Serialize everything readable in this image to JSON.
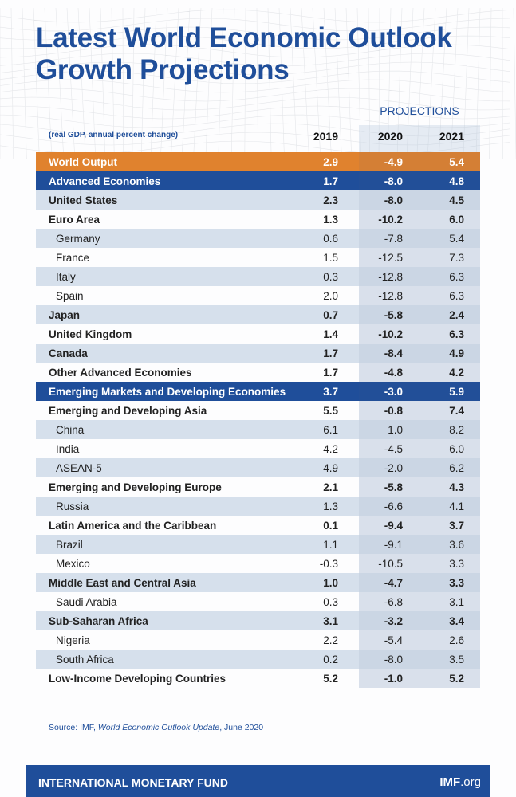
{
  "title_line1": "Latest World Economic Outlook",
  "title_line2": "Growth Projections",
  "projections_label": "PROJECTIONS",
  "unit_note": "(real GDP, annual percent change)",
  "years": [
    "2019",
    "2020",
    "2021"
  ],
  "colors": {
    "brand_blue": "#1f4e9a",
    "world_orange": "#e0822e",
    "row_alt": "#d6e0ec"
  },
  "rows": [
    {
      "label": "World Output",
      "type": "world",
      "values": [
        "2.9",
        "-4.9",
        "5.4"
      ]
    },
    {
      "label": "Advanced Economies",
      "type": "major",
      "values": [
        "1.7",
        "-8.0",
        "4.8"
      ]
    },
    {
      "label": "United States",
      "type": "bold",
      "values": [
        "2.3",
        "-8.0",
        "4.5"
      ]
    },
    {
      "label": "Euro Area",
      "type": "bold",
      "values": [
        "1.3",
        "-10.2",
        "6.0"
      ]
    },
    {
      "label": "Germany",
      "type": "sub",
      "values": [
        "0.6",
        "-7.8",
        "5.4"
      ]
    },
    {
      "label": "France",
      "type": "sub",
      "values": [
        "1.5",
        "-12.5",
        "7.3"
      ]
    },
    {
      "label": "Italy",
      "type": "sub",
      "values": [
        "0.3",
        "-12.8",
        "6.3"
      ]
    },
    {
      "label": "Spain",
      "type": "sub",
      "values": [
        "2.0",
        "-12.8",
        "6.3"
      ]
    },
    {
      "label": "Japan",
      "type": "bold",
      "values": [
        "0.7",
        "-5.8",
        "2.4"
      ]
    },
    {
      "label": "United Kingdom",
      "type": "bold",
      "values": [
        "1.4",
        "-10.2",
        "6.3"
      ]
    },
    {
      "label": "Canada",
      "type": "bold",
      "values": [
        "1.7",
        "-8.4",
        "4.9"
      ]
    },
    {
      "label": "Other Advanced Economies",
      "type": "bold",
      "values": [
        "1.7",
        "-4.8",
        "4.2"
      ]
    },
    {
      "label": "Emerging Markets and Developing Economies",
      "type": "major",
      "values": [
        "3.7",
        "-3.0",
        "5.9"
      ]
    },
    {
      "label": "Emerging and Developing Asia",
      "type": "bold",
      "values": [
        "5.5",
        "-0.8",
        "7.4"
      ]
    },
    {
      "label": "China",
      "type": "sub",
      "values": [
        "6.1",
        "1.0",
        "8.2"
      ]
    },
    {
      "label": "India",
      "type": "sub",
      "values": [
        "4.2",
        "-4.5",
        "6.0"
      ]
    },
    {
      "label": "ASEAN-5",
      "type": "sub",
      "values": [
        "4.9",
        "-2.0",
        "6.2"
      ]
    },
    {
      "label": "Emerging and Developing Europe",
      "type": "bold",
      "values": [
        "2.1",
        "-5.8",
        "4.3"
      ]
    },
    {
      "label": "Russia",
      "type": "sub",
      "values": [
        "1.3",
        "-6.6",
        "4.1"
      ]
    },
    {
      "label": "Latin America and the Caribbean",
      "type": "bold",
      "values": [
        "0.1",
        "-9.4",
        "3.7"
      ]
    },
    {
      "label": "Brazil",
      "type": "sub",
      "values": [
        "1.1",
        "-9.1",
        "3.6"
      ]
    },
    {
      "label": "Mexico",
      "type": "sub",
      "values": [
        "-0.3",
        "-10.5",
        "3.3"
      ]
    },
    {
      "label": "Middle East and Central Asia",
      "type": "bold",
      "values": [
        "1.0",
        "-4.7",
        "3.3"
      ]
    },
    {
      "label": "Saudi Arabia",
      "type": "sub",
      "values": [
        "0.3",
        "-6.8",
        "3.1"
      ]
    },
    {
      "label": "Sub-Saharan Africa",
      "type": "bold",
      "values": [
        "3.1",
        "-3.2",
        "3.4"
      ]
    },
    {
      "label": "Nigeria",
      "type": "sub",
      "values": [
        "2.2",
        "-5.4",
        "2.6"
      ]
    },
    {
      "label": "South Africa",
      "type": "sub",
      "values": [
        "0.2",
        "-8.0",
        "3.5"
      ]
    },
    {
      "label": "Low-Income Developing Countries",
      "type": "bold",
      "values": [
        "5.2",
        "-1.0",
        "5.2"
      ]
    }
  ],
  "source_prefix": "Source: IMF, ",
  "source_title": "World Economic Outlook Update",
  "source_suffix": ", June 2020",
  "footer": {
    "org": "INTERNATIONAL MONETARY FUND",
    "url_bold": "IMF",
    "url_rest": ".org"
  }
}
